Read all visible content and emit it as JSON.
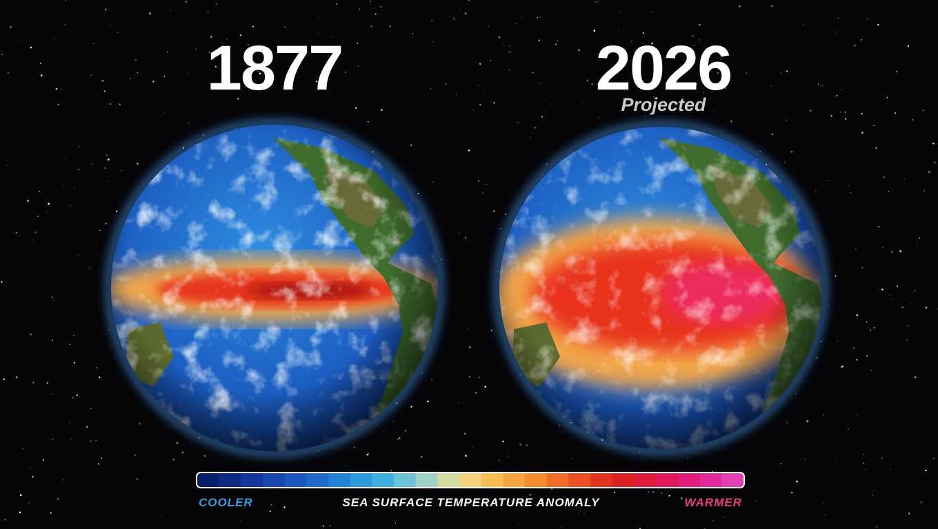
{
  "panels": [
    {
      "year": "1877"
    },
    {
      "year": "2026",
      "note": "Projected"
    }
  ],
  "legend": {
    "low": "COOLER",
    "title": "SEA SURFACE TEMPERATURE ANOMALY",
    "high": "WARMER",
    "colors": [
      "#0a1f6b",
      "#0d2a85",
      "#12379c",
      "#1646ae",
      "#1a58c0",
      "#1e6bcc",
      "#2382d6",
      "#2b9ade",
      "#3fb0e0",
      "#69c2d6",
      "#9fd1c4",
      "#d4dca0",
      "#f3d27a",
      "#f6bd55",
      "#f5a33a",
      "#f38a2c",
      "#ef6d25",
      "#ea5020",
      "#e3321c",
      "#dc1f1f",
      "#e01a3a",
      "#e3185a",
      "#e31c7c",
      "#e2289a",
      "#e040b4"
    ]
  }
}
